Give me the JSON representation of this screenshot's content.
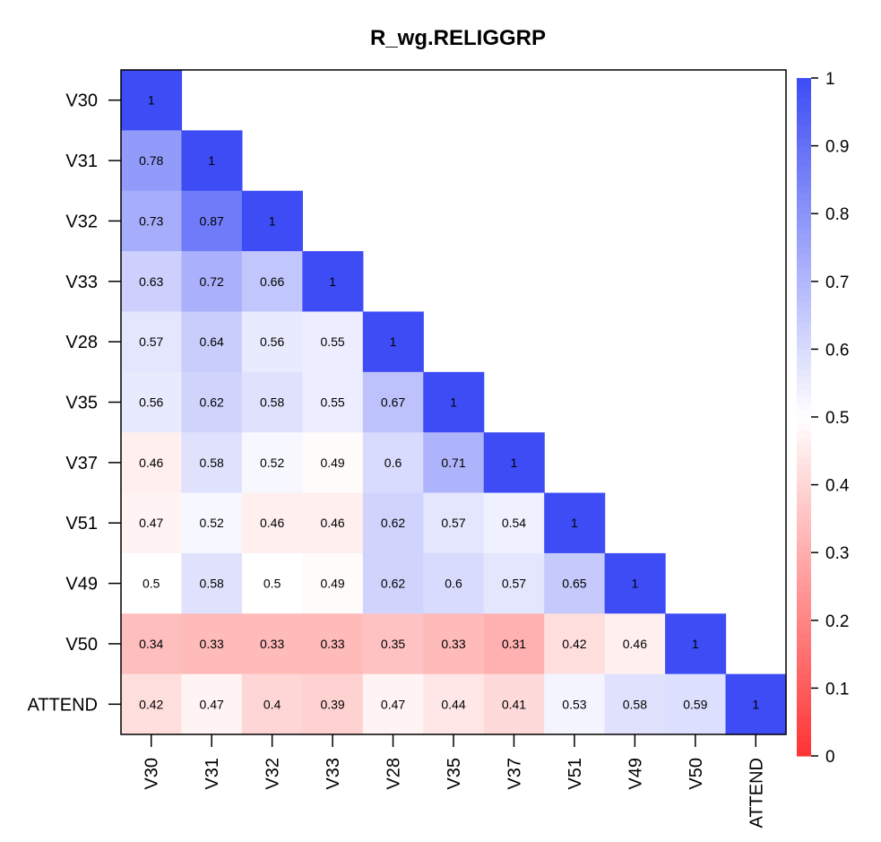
{
  "chart_data": {
    "type": "heatmap",
    "title": "R_wg.RELIGGRP",
    "variables": [
      "V30",
      "V31",
      "V32",
      "V33",
      "V28",
      "V35",
      "V37",
      "V51",
      "V49",
      "V50",
      "ATTEND"
    ],
    "matrix_lower": [
      [
        1
      ],
      [
        0.78,
        1
      ],
      [
        0.73,
        0.87,
        1
      ],
      [
        0.63,
        0.72,
        0.66,
        1
      ],
      [
        0.57,
        0.64,
        0.56,
        0.55,
        1
      ],
      [
        0.56,
        0.62,
        0.58,
        0.55,
        0.67,
        1
      ],
      [
        0.46,
        0.58,
        0.52,
        0.49,
        0.6,
        0.71,
        1
      ],
      [
        0.47,
        0.52,
        0.46,
        0.46,
        0.62,
        0.57,
        0.54,
        1
      ],
      [
        0.5,
        0.58,
        0.5,
        0.49,
        0.62,
        0.6,
        0.57,
        0.65,
        1
      ],
      [
        0.34,
        0.33,
        0.33,
        0.33,
        0.35,
        0.33,
        0.31,
        0.42,
        0.46,
        1
      ],
      [
        0.42,
        0.47,
        0.4,
        0.39,
        0.47,
        0.44,
        0.41,
        0.53,
        0.58,
        0.59,
        1
      ]
    ],
    "colorbar": {
      "range": [
        0,
        1
      ],
      "ticks": [
        "0",
        "0.1",
        "0.2",
        "0.3",
        "0.4",
        "0.5",
        "0.6",
        "0.7",
        "0.8",
        "0.9",
        "1"
      ],
      "colors": {
        "low": "#ff3333",
        "mid": "#ffffff",
        "high": "#3d4cf5"
      }
    }
  }
}
